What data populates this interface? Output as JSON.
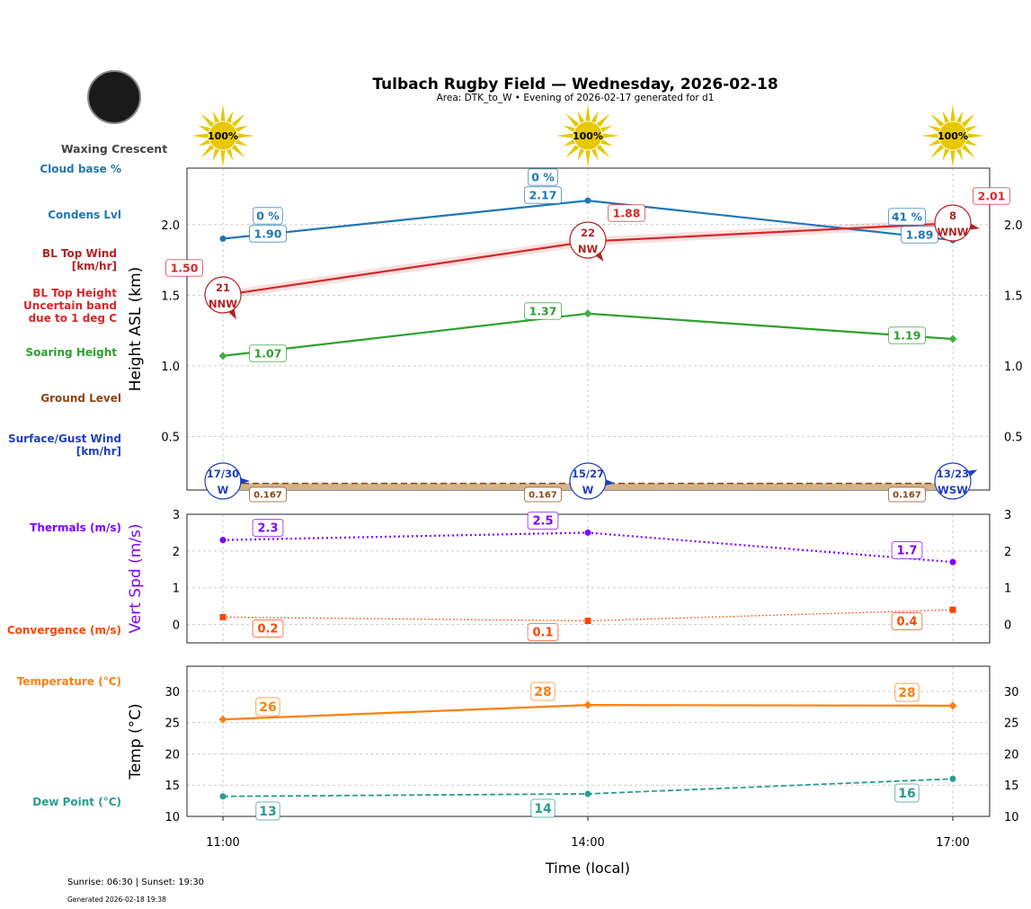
{
  "title": "Tulbach Rugby Field — Wednesday, 2026-02-18",
  "subtitle": "Area: DTK_to_W • Evening of 2026-02-17 generated for d1",
  "moon": {
    "phase": "Waxing Crescent"
  },
  "footer": {
    "sun": "Sunrise: 06:30 | Sunset: 19:30",
    "generated": "Generated 2026-02-18 19:38"
  },
  "colors": {
    "cloud": "#1f77b4",
    "bl_wind": "#b22222",
    "bl_top": "#d62728",
    "soaring": "#2ca02c",
    "ground": "#8b4513",
    "surface_wind": "#1f3fbf",
    "thermals": "#7f00ff",
    "convergence": "#ff4500",
    "temperature": "#ff7f0e",
    "dew": "#2a9d8f",
    "sun": "#e6c800"
  },
  "row_labels": {
    "cloud_base": "Cloud base %",
    "condens": "Condens Lvl",
    "bl_wind": "BL Top Wind\n[km/hr]",
    "bl_top": "BL Top Height\nUncertain band\ndue to 1 deg C",
    "soaring": "Soaring Height",
    "ground": "Ground Level",
    "surface_wind": "Surface/Gust Wind\n[km/hr]",
    "thermals": "Thermals (m/s)",
    "convergence": "Convergence (m/s)",
    "temperature": "Temperature (°C)",
    "dew": "Dew Point (°C)"
  },
  "chart_data": [
    {
      "type": "line",
      "ylabel": "Height ASL (km)",
      "x": [
        "11:00",
        "14:00",
        "17:00"
      ],
      "ylim": [
        0.12,
        2.4
      ],
      "yticks": [
        "0.5",
        "1.0",
        "1.5",
        "2.0"
      ],
      "grid": true,
      "sun_percent": [
        "100%",
        "100%",
        "100%"
      ],
      "series": [
        {
          "key": "condens",
          "values": [
            1.9,
            2.17,
            1.89
          ],
          "labels": [
            "1.90",
            "2.17",
            "1.89"
          ],
          "cloud_pct": [
            "0 %",
            "0 %",
            "41 %"
          ]
        },
        {
          "key": "bl_top",
          "values": [
            1.5,
            1.88,
            2.01
          ],
          "labels": [
            "1.50",
            "1.88",
            "2.01"
          ],
          "band": 0.03
        },
        {
          "key": "soaring",
          "values": [
            1.07,
            1.37,
            1.19
          ],
          "labels": [
            "1.07",
            "1.37",
            "1.19"
          ]
        },
        {
          "key": "ground",
          "values": [
            0.167,
            0.167,
            0.167
          ],
          "labels": [
            "0.167",
            "0.167",
            "0.167"
          ]
        }
      ],
      "bl_wind": [
        {
          "speed": "21",
          "dir": "NNW"
        },
        {
          "speed": "22",
          "dir": "NW"
        },
        {
          "speed": "8",
          "dir": "WNW"
        }
      ],
      "surface_wind": [
        {
          "speed": "17/30",
          "dir": "W"
        },
        {
          "speed": "15/27",
          "dir": "W"
        },
        {
          "speed": "13/23",
          "dir": "WSW"
        }
      ]
    },
    {
      "type": "line",
      "ylabel": "Vert Spd (m/s)",
      "x": [
        "11:00",
        "14:00",
        "17:00"
      ],
      "ylim": [
        -0.5,
        3
      ],
      "yticks": [
        "0",
        "1",
        "2",
        "3"
      ],
      "series": [
        {
          "key": "thermals",
          "values": [
            2.3,
            2.5,
            1.7
          ],
          "labels": [
            "2.3",
            "2.5",
            "1.7"
          ]
        },
        {
          "key": "convergence",
          "values": [
            0.2,
            0.1,
            0.4
          ],
          "labels": [
            "0.2",
            "0.1",
            "0.4"
          ]
        }
      ]
    },
    {
      "type": "line",
      "ylabel": "Temp (°C)",
      "xlabel": "Time (local)",
      "x": [
        "11:00",
        "14:00",
        "17:00"
      ],
      "ylim": [
        10,
        34
      ],
      "yticks": [
        "10",
        "15",
        "20",
        "25",
        "30"
      ],
      "series": [
        {
          "key": "temperature",
          "values": [
            25.5,
            27.8,
            27.7
          ],
          "labels": [
            "26",
            "28",
            "28"
          ]
        },
        {
          "key": "dew",
          "values": [
            13.2,
            13.6,
            16.0
          ],
          "labels": [
            "13",
            "14",
            "16"
          ]
        }
      ]
    }
  ]
}
